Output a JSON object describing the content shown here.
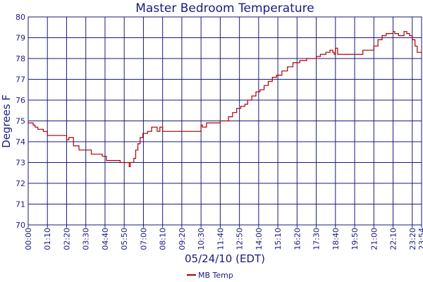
{
  "chart_data": {
    "type": "line",
    "title": "Master Bedroom Temperature",
    "xlabel": "05/24/10 (EDT)",
    "ylabel": "Degrees F",
    "ylim": [
      70,
      80
    ],
    "yticks": [
      "70",
      "71",
      "72",
      "73",
      "74",
      "75",
      "76",
      "77",
      "78",
      "79",
      "80"
    ],
    "xlim_minutes": [
      0,
      1434
    ],
    "xticks": [
      {
        "label": "00:00",
        "minutes": 0
      },
      {
        "label": "01:10",
        "minutes": 70
      },
      {
        "label": "02:20",
        "minutes": 140
      },
      {
        "label": "03:30",
        "minutes": 210
      },
      {
        "label": "04:40",
        "minutes": 280
      },
      {
        "label": "05:50",
        "minutes": 350
      },
      {
        "label": "07:00",
        "minutes": 420
      },
      {
        "label": "08:10",
        "minutes": 490
      },
      {
        "label": "09:20",
        "minutes": 560
      },
      {
        "label": "10:30",
        "minutes": 630
      },
      {
        "label": "11:40",
        "minutes": 700
      },
      {
        "label": "12:50",
        "minutes": 770
      },
      {
        "label": "14:00",
        "minutes": 840
      },
      {
        "label": "15:10",
        "minutes": 910
      },
      {
        "label": "16:20",
        "minutes": 980
      },
      {
        "label": "17:30",
        "minutes": 1050
      },
      {
        "label": "18:40",
        "minutes": 1120
      },
      {
        "label": "19:50",
        "minutes": 1190
      },
      {
        "label": "21:00",
        "minutes": 1260
      },
      {
        "label": "22:10",
        "minutes": 1330
      },
      {
        "label": "23:20",
        "minutes": 1400
      },
      {
        "label": "23:54",
        "minutes": 1434
      }
    ],
    "grid": true,
    "legend": "bottom-center",
    "series": [
      {
        "name": "MB Temp",
        "color": "#aa0000",
        "x_minutes": [
          0,
          18,
          25,
          35,
          55,
          70,
          100,
          130,
          140,
          148,
          165,
          185,
          210,
          230,
          270,
          285,
          310,
          335,
          350,
          360,
          368,
          372,
          376,
          385,
          392,
          400,
          408,
          418,
          435,
          440,
          450,
          460,
          470,
          480,
          490,
          500,
          560,
          625,
          630,
          635,
          650,
          680,
          700,
          715,
          730,
          745,
          760,
          775,
          790,
          800,
          815,
          830,
          845,
          860,
          875,
          890,
          905,
          925,
          945,
          965,
          990,
          1000,
          1015,
          1040,
          1050,
          1065,
          1085,
          1100,
          1110,
          1115,
          1120,
          1128,
          1160,
          1190,
          1220,
          1230,
          1260,
          1275,
          1290,
          1305,
          1320,
          1330,
          1336,
          1340,
          1350,
          1370,
          1380,
          1390,
          1400,
          1410,
          1418,
          1434
        ],
        "values": [
          74.9,
          74.8,
          74.7,
          74.6,
          74.5,
          74.3,
          74.3,
          74.3,
          74.1,
          74.2,
          73.8,
          73.6,
          73.6,
          73.4,
          73.3,
          73.1,
          73.1,
          73.0,
          73.0,
          73.0,
          72.8,
          73.0,
          73.0,
          73.2,
          73.6,
          73.9,
          74.2,
          74.4,
          74.5,
          74.5,
          74.7,
          74.7,
          74.5,
          74.7,
          74.5,
          74.5,
          74.5,
          74.5,
          74.8,
          74.7,
          74.9,
          74.9,
          75.0,
          75.0,
          75.2,
          75.4,
          75.6,
          75.7,
          75.8,
          76.0,
          76.2,
          76.4,
          76.5,
          76.7,
          76.9,
          77.1,
          77.2,
          77.4,
          77.6,
          77.8,
          77.9,
          77.9,
          78.0,
          78.0,
          78.1,
          78.2,
          78.3,
          78.4,
          78.3,
          78.2,
          78.5,
          78.2,
          78.2,
          78.2,
          78.4,
          78.4,
          78.6,
          78.9,
          79.1,
          79.2,
          79.2,
          79.3,
          79.2,
          79.2,
          79.1,
          79.3,
          79.2,
          79.1,
          78.9,
          78.6,
          78.3,
          78.2
        ]
      }
    ]
  }
}
